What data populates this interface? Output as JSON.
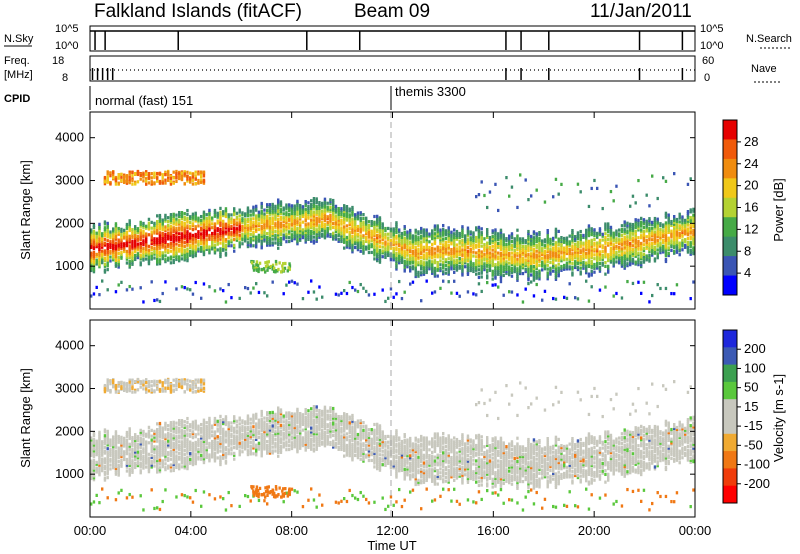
{
  "header": {
    "station": "Falkland Islands (fitACF)",
    "beam": "Beam 09",
    "date": "11/Jan/2011"
  },
  "sky_panel": {
    "left_label": "N.Sky",
    "right_label": "N.Search",
    "left_top_tick": "10^5",
    "left_bottom_tick": "10^0",
    "right_top_tick": "10^5",
    "right_bottom_tick": "10^0"
  },
  "freq_panel": {
    "left_label_1": "Freq.",
    "left_label_2": "[MHz]",
    "left_bottom_tick": "8",
    "left_top_tick": "18",
    "right_label": "Nave",
    "right_top_tick": "60",
    "right_bottom_tick": "0"
  },
  "cpid": {
    "label": "CPID",
    "mode1": "normal (fast) 151",
    "mode2": "themis 3300"
  },
  "colors": {
    "power": [
      "#0000ff",
      "#3a55b4",
      "#3c8c6b",
      "#46aa46",
      "#b4d232",
      "#f0c819",
      "#f08c0f",
      "#f05a0a",
      "#e60000"
    ],
    "velocity": [
      "#ff0000",
      "#f03c0a",
      "#f07814",
      "#f0aa32",
      "#c8c8be",
      "#c8c8be",
      "#5ac83c",
      "#3ca050",
      "#3c5ab4",
      "#1e28dc"
    ]
  },
  "chart_data": [
    {
      "type": "heatmap",
      "ylabel": "Slant Range [km]",
      "xlabel": "Time UT",
      "ylim": [
        0,
        4600
      ],
      "yticks": [
        "1000",
        "2000",
        "3000",
        "4000"
      ],
      "xticks": [
        "00:00",
        "04:00",
        "08:00",
        "12:00",
        "16:00",
        "20:00",
        "00:00"
      ],
      "colorbar": {
        "label": "Power [dB]",
        "ticks": [
          "4",
          "8",
          "12",
          "16",
          "20",
          "24",
          "28"
        ],
        "range": [
          0,
          30
        ]
      }
    },
    {
      "type": "heatmap",
      "ylabel": "Slant Range [km]",
      "xlabel": "Time UT",
      "ylim": [
        0,
        4600
      ],
      "yticks": [
        "1000",
        "2000",
        "3000",
        "4000"
      ],
      "xticks": [
        "00:00",
        "04:00",
        "08:00",
        "12:00",
        "16:00",
        "20:00",
        "00:00"
      ],
      "colorbar": {
        "label": "Velocity [m s-1]",
        "ticks": [
          "200",
          "100",
          "50",
          "15",
          "-15",
          "-50",
          "-100",
          "-200"
        ],
        "range": [
          -250,
          250
        ]
      }
    }
  ]
}
